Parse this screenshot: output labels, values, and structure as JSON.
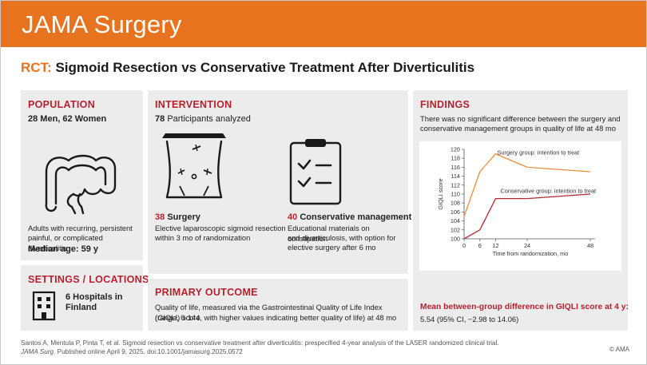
{
  "header": {
    "journal": "JAMA Surgery"
  },
  "title": {
    "prefix": "RCT:",
    "text": "Sigmoid Resection vs Conservative Treatment After Diverticulitis"
  },
  "population": {
    "heading": "POPULATION",
    "counts": "28 Men, 62 Women",
    "description_line1": "Adults with recurring, persistent",
    "description_line2": "painful, or complicated diverticulitis",
    "median_age": "Median age: 59 y"
  },
  "settings": {
    "heading": "SETTINGS / LOCATIONS",
    "hospitals_line1": "6 Hospitals in",
    "hospitals_line2": "Finland"
  },
  "intervention": {
    "heading": "INTERVENTION",
    "participants_number": "78",
    "participants_text": "Participants analyzed",
    "surgery": {
      "count": "38",
      "label": "Surgery",
      "line1": "Elective laparoscopic sigmoid resection",
      "line2": "within 3 mo of randomization"
    },
    "conservative": {
      "count": "40",
      "label": "Conservative management",
      "line1": "Educational materials on constipation",
      "line2": "and diverticulosis, with option for",
      "line3": "elective surgery after 6 mo"
    }
  },
  "primary_outcome": {
    "heading": "PRIMARY OUTCOME",
    "line1": "Quality of life, measured via the Gastrointestinal Quality of Life Index (GIQLI) score",
    "line2": "(range, 0-144, with higher values indicating better quality of life) at 48 mo"
  },
  "findings": {
    "heading": "FINDINGS",
    "line1": "There was no significant difference between the surgery and",
    "line2": "conservative management groups in quality of life at 48 mo",
    "mean_diff_heading": "Mean between-group difference in GIQLI score at 4 y:",
    "mean_diff_value": "5.54 (95% CI, −2.98 to 14.06)"
  },
  "chart_data": {
    "type": "line",
    "xlabel": "Time from randomization, mo",
    "ylabel": "GIQLI score",
    "xlim": [
      0,
      48
    ],
    "ylim": [
      100,
      120
    ],
    "xticks": [
      0,
      6,
      12,
      24,
      48
    ],
    "yticks": [
      100,
      102,
      104,
      106,
      108,
      110,
      112,
      114,
      116,
      118,
      120
    ],
    "series": [
      {
        "name": "Surgery group: intention to treat",
        "color": "#f08c3a",
        "x": [
          0,
          6,
          12,
          24,
          48
        ],
        "y": [
          105,
          115,
          119,
          116,
          115
        ]
      },
      {
        "name": "Conservative group: intention to treat",
        "color": "#b52a2f",
        "x": [
          0,
          6,
          12,
          24,
          48
        ],
        "y": [
          100,
          102,
          109,
          109,
          110
        ]
      }
    ]
  },
  "citation": {
    "line1": "Santos A, Mentula P, Pinta T, et al. Sigmoid resection vs conservative treatment after diverticulitis: prespecified 4-year analysis of the LASER randomized clinical trial.",
    "journal_italic": "JAMA Surg",
    "line2_rest": ". Published online April 9, 2025. doi:10.1001/jamasurg.2025.0572"
  },
  "copyright": "© AMA"
}
